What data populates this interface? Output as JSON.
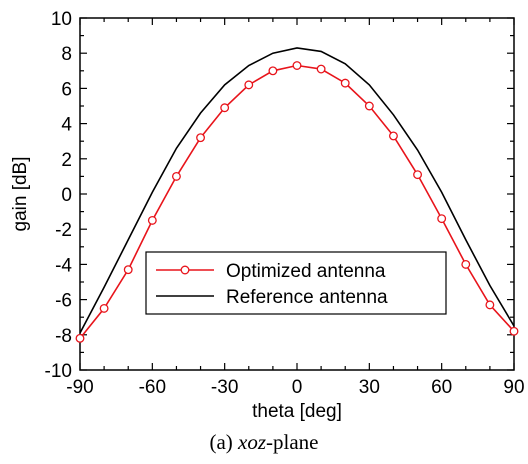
{
  "chart_data": {
    "type": "line",
    "xlabel": "theta [deg]",
    "ylabel": "gain [dB]",
    "xlim": [
      -90,
      90
    ],
    "ylim": [
      -10,
      10
    ],
    "xticks": [
      -90,
      -60,
      -30,
      0,
      30,
      60,
      90
    ],
    "yticks": [
      -10,
      -8,
      -6,
      -4,
      -2,
      0,
      2,
      4,
      6,
      8,
      10
    ],
    "grid": false,
    "legend_position": "lower-center",
    "series": [
      {
        "name": "Optimized antenna",
        "color": "#e8141b",
        "marker": "open-circle",
        "x": [
          -90,
          -80,
          -70,
          -60,
          -50,
          -40,
          -30,
          -20,
          -10,
          0,
          10,
          20,
          30,
          40,
          50,
          60,
          70,
          80,
          90
        ],
        "y": [
          -8.2,
          -6.5,
          -4.3,
          -1.5,
          1.0,
          3.2,
          4.9,
          6.2,
          7.0,
          7.3,
          7.1,
          6.3,
          5.0,
          3.3,
          1.1,
          -1.4,
          -4.0,
          -6.3,
          -7.8
        ]
      },
      {
        "name": "Reference antenna",
        "color": "#000000",
        "marker": "none",
        "x": [
          -90,
          -80,
          -70,
          -60,
          -50,
          -40,
          -30,
          -20,
          -10,
          0,
          10,
          20,
          30,
          40,
          50,
          60,
          70,
          80,
          90
        ],
        "y": [
          -7.9,
          -5.3,
          -2.6,
          0.1,
          2.6,
          4.6,
          6.2,
          7.3,
          8.0,
          8.3,
          8.1,
          7.4,
          6.2,
          4.5,
          2.5,
          0.1,
          -2.6,
          -5.2,
          -7.5
        ]
      }
    ]
  },
  "caption": {
    "prefix": "(a) ",
    "italic": "xoz",
    "suffix": "-plane"
  }
}
